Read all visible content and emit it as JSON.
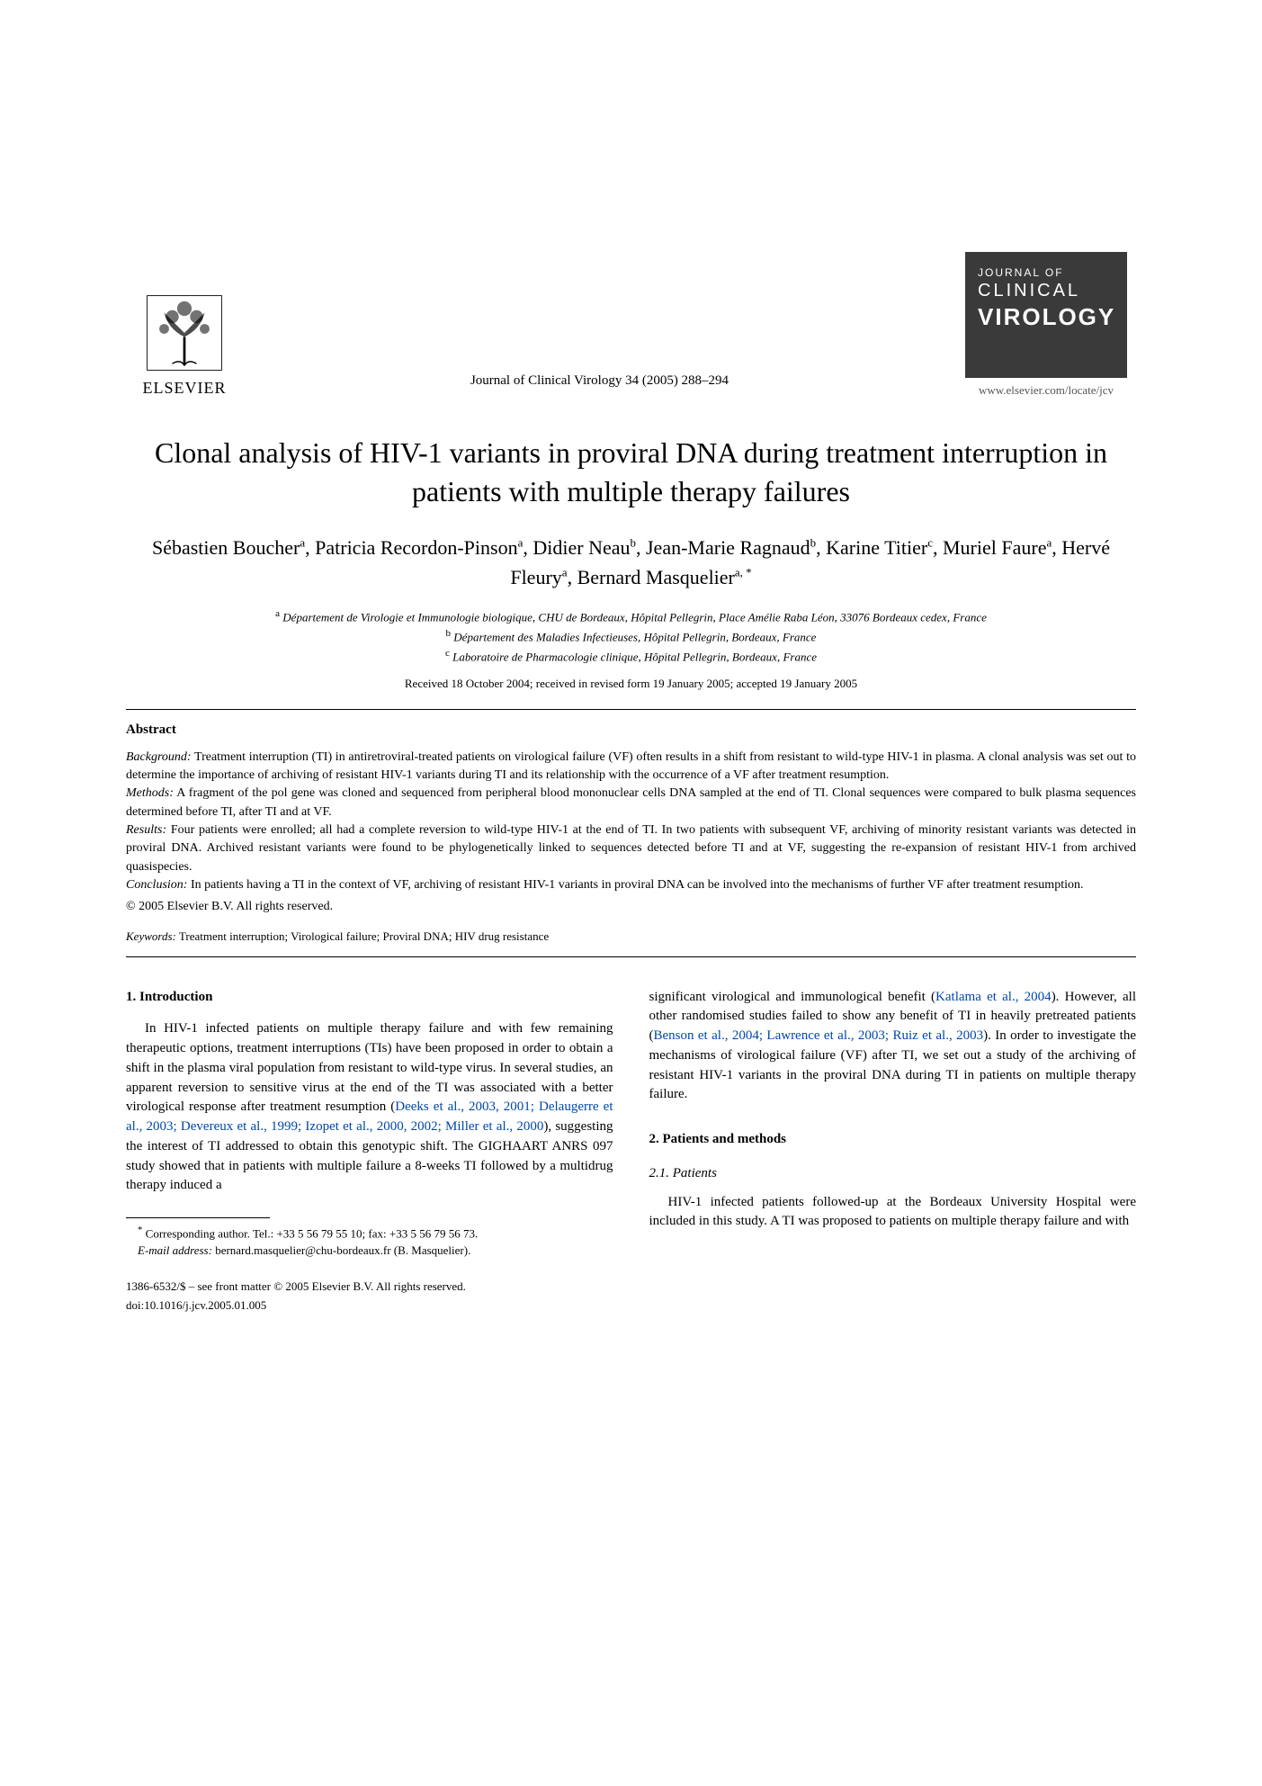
{
  "publisher": {
    "name": "ELSEVIER"
  },
  "citation": "Journal of Clinical Virology 34 (2005) 288–294",
  "journal_cover": {
    "line1": "JOURNAL OF",
    "line2": "CLINICAL",
    "line3": "VIROLOGY"
  },
  "journal_url": "www.elsevier.com/locate/jcv",
  "title": "Clonal analysis of HIV-1 variants in proviral DNA during treatment interruption in patients with multiple therapy failures",
  "authors_html": "Sébastien Boucher<sup>a</sup>, Patricia Recordon-Pinson<sup>a</sup>, Didier Neau<sup>b</sup>, Jean-Marie Ragnaud<sup>b</sup>, Karine Titier<sup>c</sup>, Muriel Faure<sup>a</sup>, Hervé Fleury<sup>a</sup>, Bernard Masquelier<sup>a, *</sup>",
  "affiliations": {
    "a": "Département de Virologie et Immunologie biologique, CHU de Bordeaux, Hôpital Pellegrin, Place Amélie Raba Léon, 33076 Bordeaux cedex, France",
    "b": "Département des Maladies Infectieuses, Hôpital Pellegrin, Bordeaux, France",
    "c": "Laboratoire de Pharmacologie clinique, Hôpital Pellegrin, Bordeaux, France"
  },
  "dates": "Received 18 October 2004; received in revised form 19 January 2005; accepted 19 January 2005",
  "abstract_heading": "Abstract",
  "abstract": {
    "background_label": "Background:",
    "background": "Treatment interruption (TI) in antiretroviral-treated patients on virological failure (VF) often results in a shift from resistant to wild-type HIV-1 in plasma. A clonal analysis was set out to determine the importance of archiving of resistant HIV-1 variants during TI and its relationship with the occurrence of a VF after treatment resumption.",
    "methods_label": "Methods:",
    "methods": "A fragment of the pol gene was cloned and sequenced from peripheral blood mononuclear cells DNA sampled at the end of TI. Clonal sequences were compared to bulk plasma sequences determined before TI, after TI and at VF.",
    "results_label": "Results:",
    "results": "Four patients were enrolled; all had a complete reversion to wild-type HIV-1 at the end of TI. In two patients with subsequent VF, archiving of minority resistant variants was detected in proviral DNA. Archived resistant variants were found to be phylogenetically linked to sequences detected before TI and at VF, suggesting the re-expansion of resistant HIV-1 from archived quasispecies.",
    "conclusion_label": "Conclusion:",
    "conclusion": "In patients having a TI in the context of VF, archiving of resistant HIV-1 variants in proviral DNA can be involved into the mechanisms of further VF after treatment resumption."
  },
  "copyright": "© 2005 Elsevier B.V. All rights reserved.",
  "keywords_label": "Keywords:",
  "keywords": "Treatment interruption; Virological failure; Proviral DNA; HIV drug resistance",
  "section1_head": "1. Introduction",
  "intro_p1_pre": "In HIV-1 infected patients on multiple therapy failure and with few remaining therapeutic options, treatment interruptions (TIs) have been proposed in order to obtain a shift in the plasma viral population from resistant to wild-type virus. In several studies, an apparent reversion to sensitive virus at the end of the TI was associated with a better virological response after treatment resumption (",
  "intro_refs1": "Deeks et al., 2003, 2001; Delaugerre et al., 2003; Devereux et al., 1999; Izopet et al., 2000, 2002; Miller et al., 2000",
  "intro_p1_post": "), suggesting the interest of TI addressed to obtain this genotypic shift. The GIGHAART ANRS 097 study showed that in patients with multiple failure a 8-weeks TI followed by a multidrug therapy induced a",
  "intro_p2_pre": "significant virological and immunological benefit (",
  "intro_refs2": "Katlama et al., 2004",
  "intro_p2_mid": "). However, all other randomised studies failed to show any benefit of TI in heavily pretreated patients (",
  "intro_refs3": "Benson et al., 2004; Lawrence et al., 2003; Ruiz et al., 2003",
  "intro_p2_post": "). In order to investigate the mechanisms of virological failure (VF) after TI, we set out a study of the archiving of resistant HIV-1 variants in the proviral DNA during TI in patients on multiple therapy failure.",
  "section2_head": "2. Patients and methods",
  "subsection21_head": "2.1. Patients",
  "patients_p": "HIV-1 infected patients followed-up at the Bordeaux University Hospital were included in this study. A TI was proposed to patients on multiple therapy failure and with",
  "footnote_marker": "*",
  "footnote_corr": "Corresponding author. Tel.: +33 5 56 79 55 10; fax: +33 5 56 79 56 73.",
  "footnote_email_label": "E-mail address:",
  "footnote_email": "bernard.masquelier@chu-bordeaux.fr (B. Masquelier).",
  "footer_issn": "1386-6532/$ – see front matter © 2005 Elsevier B.V. All rights reserved.",
  "footer_doi": "doi:10.1016/j.jcv.2005.01.005",
  "colors": {
    "text": "#000000",
    "background": "#ffffff",
    "link": "#0047ab",
    "cover_bg": "#3a3a3a",
    "cover_text": "#ffffff",
    "url_gray": "#555555"
  },
  "fonts": {
    "body_family": "Times New Roman",
    "title_size_pt": 24,
    "authors_size_pt": 16,
    "body_size_pt": 11,
    "abstract_size_pt": 10
  }
}
